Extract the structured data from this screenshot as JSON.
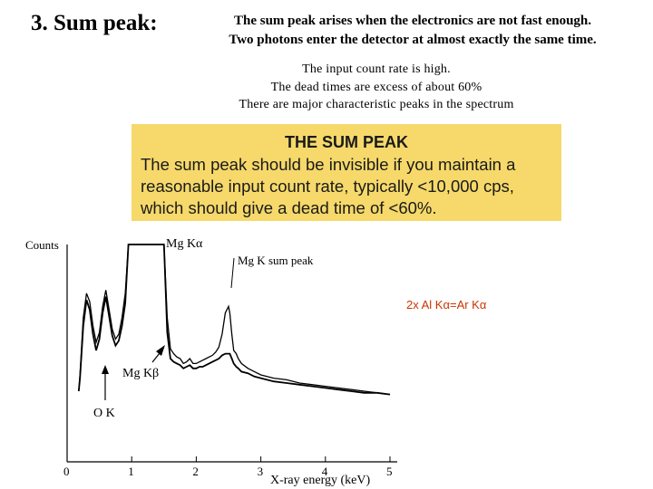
{
  "slide": {
    "title": "3. Sum peak:",
    "intro_lines": [
      "The sum peak arises when the electronics are not fast enough.",
      "Two photons enter the detector at almost exactly the same time."
    ],
    "notes": [
      "The input count rate is high.",
      "The dead times are excess of about 60%",
      "There are major characteristic peaks in the spectrum"
    ],
    "callout": {
      "heading": "THE SUM PEAK",
      "body": "The sum peak should be invisible if you maintain a\nreasonable input count rate, typically <10,000 cps,\nwhich should give a dead time of <60%."
    },
    "annotation": "2x Al Kα=Ar Kα",
    "annotation_color": "#cc3300",
    "callout_color": "#f6d96a"
  },
  "chart_data": {
    "type": "line",
    "xlabel": "X-ray energy (keV)",
    "ylabel": "Counts",
    "xlim": [
      0,
      5
    ],
    "x_ticks": [
      "0",
      "1",
      "2",
      "3",
      "4",
      "5"
    ],
    "peak_labels": {
      "mg_ka": "Mg Kα",
      "mg_k_sum": "Mg K sum peak",
      "mg_kb": "Mg Kβ",
      "o_k": "O K"
    },
    "series": [
      {
        "x": [
          0.18,
          0.2,
          0.25,
          0.3,
          0.35,
          0.4,
          0.45,
          0.5,
          0.55,
          0.6,
          0.65,
          0.7,
          0.75,
          0.8,
          0.85,
          0.9,
          0.95,
          1.0,
          1.05,
          1.1,
          1.15,
          1.2,
          1.25,
          1.3,
          1.35,
          1.4,
          1.45,
          1.5,
          1.55,
          1.6,
          1.65,
          1.7,
          1.75,
          1.8,
          1.85,
          1.9,
          1.95,
          2.0,
          2.05,
          2.1,
          2.15,
          2.2,
          2.25,
          2.3,
          2.35,
          2.4,
          2.45,
          2.5,
          2.52,
          2.55,
          2.58,
          2.6,
          2.62,
          2.65,
          2.7,
          2.8,
          2.9,
          3.0,
          3.2,
          3.4,
          3.6,
          3.8,
          4.0,
          4.2,
          4.4,
          4.6,
          4.8,
          5.0
        ],
        "y": [
          10,
          20,
          55,
          70,
          65,
          50,
          40,
          46,
          62,
          72,
          60,
          48,
          42,
          45,
          55,
          70,
          100,
          100,
          100,
          100,
          100,
          100,
          100,
          100,
          100,
          100,
          100,
          100,
          55,
          36,
          33,
          31,
          30,
          27,
          28,
          30,
          27,
          27,
          28,
          29,
          30,
          31,
          32,
          34,
          37,
          45,
          58,
          62,
          58,
          45,
          35,
          34,
          33,
          30,
          27,
          24,
          22,
          20,
          18,
          17,
          15,
          14,
          13,
          12,
          11,
          10,
          9,
          8
        ]
      },
      {
        "x": [
          0.18,
          0.2,
          0.25,
          0.3,
          0.35,
          0.4,
          0.45,
          0.5,
          0.55,
          0.6,
          0.65,
          0.7,
          0.75,
          0.8,
          0.85,
          0.9,
          0.95,
          1.0,
          1.05,
          1.1,
          1.15,
          1.2,
          1.25,
          1.3,
          1.35,
          1.4,
          1.45,
          1.5,
          1.55,
          1.6,
          1.65,
          1.7,
          1.75,
          1.8,
          1.85,
          1.9,
          1.95,
          2.0,
          2.05,
          2.1,
          2.15,
          2.2,
          2.25,
          2.3,
          2.35,
          2.4,
          2.45,
          2.5,
          2.52,
          2.55,
          2.58,
          2.6,
          2.62,
          2.65,
          2.7,
          2.8,
          2.9,
          3.0,
          3.2,
          3.4,
          3.6,
          3.8,
          4.0,
          4.2,
          4.4,
          4.6,
          4.8,
          5.0
        ],
        "y": [
          10,
          18,
          50,
          66,
          60,
          45,
          35,
          42,
          58,
          68,
          56,
          44,
          38,
          41,
          50,
          64,
          100,
          100,
          100,
          100,
          100,
          100,
          100,
          100,
          100,
          100,
          100,
          100,
          46,
          30,
          28,
          27,
          26,
          24,
          25,
          26,
          24,
          24,
          25,
          25,
          26,
          27,
          28,
          29,
          30,
          32,
          33,
          33,
          33,
          30,
          27,
          26,
          25,
          24,
          22,
          21,
          19,
          18,
          16,
          15,
          14,
          13,
          12,
          11,
          10,
          9,
          9,
          8
        ]
      }
    ]
  }
}
